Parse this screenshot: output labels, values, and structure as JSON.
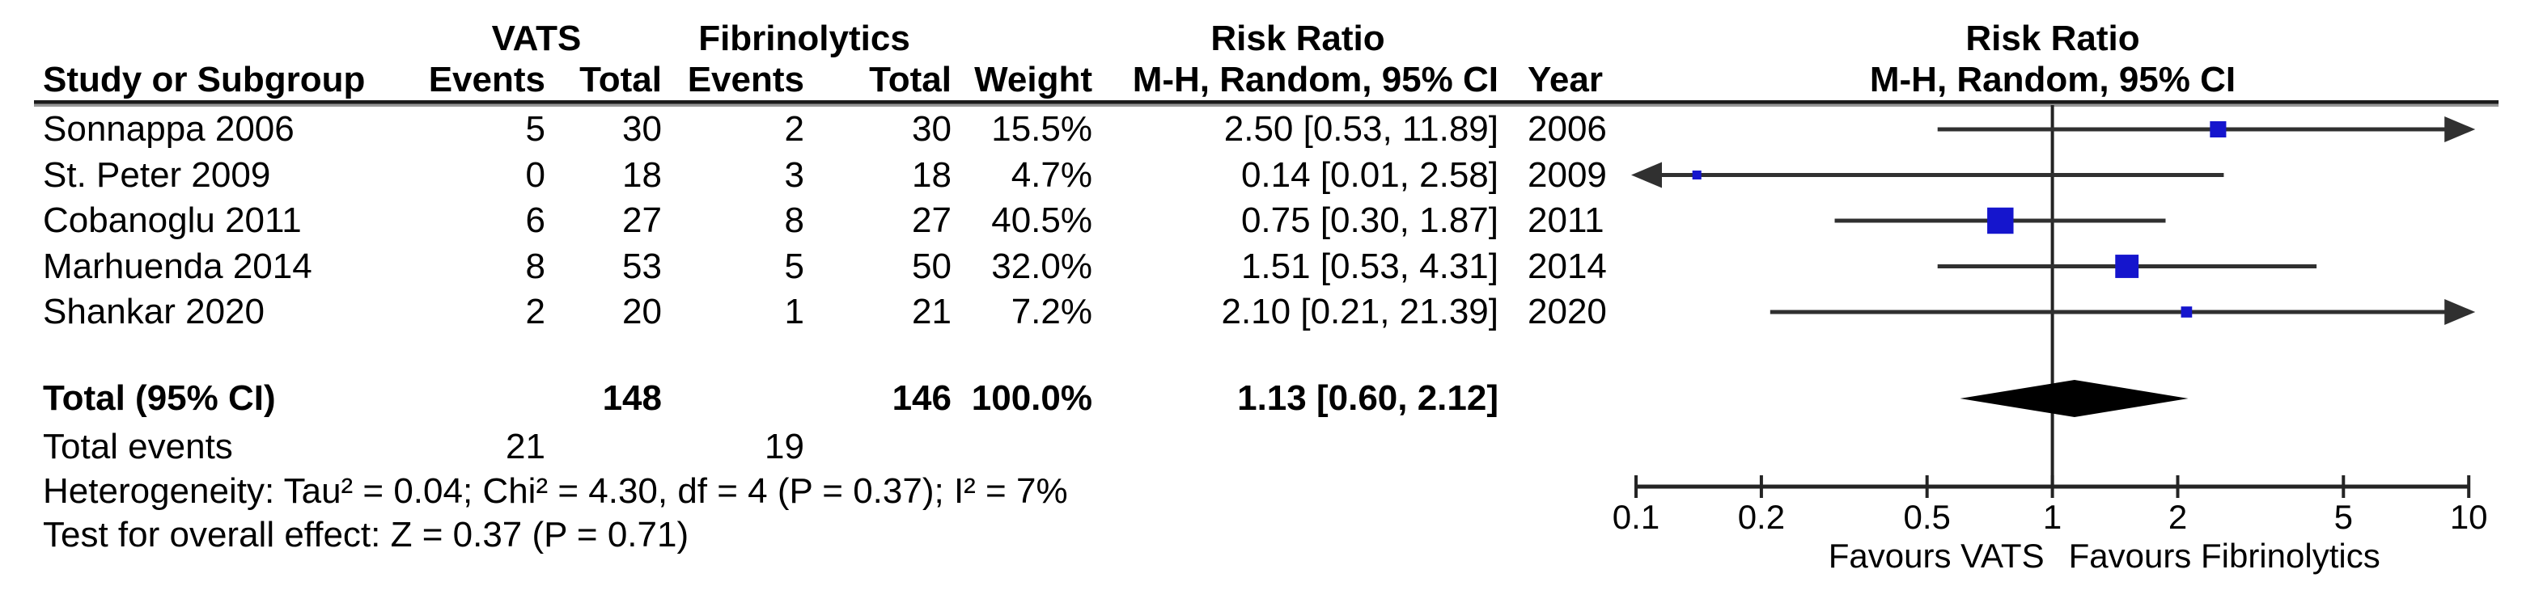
{
  "chart_data": {
    "type": "forest_plot",
    "effect_measure": "Risk Ratio",
    "groups": [
      {
        "label": "VATS"
      },
      {
        "label": "Fibrinolytics"
      }
    ],
    "risk_ratio_header_left": "Risk Ratio",
    "risk_ratio_header_right": "Risk Ratio",
    "method_header_left": "M-H, Random, 95% CI",
    "method_header_right": "M-H, Random, 95% CI",
    "columns": {
      "study": "Study or Subgroup",
      "events1": "Events",
      "total1": "Total",
      "events2": "Events",
      "total2": "Total",
      "weight": "Weight",
      "ci": "M-H, Random, 95% CI",
      "year": "Year"
    },
    "studies": [
      {
        "name": "Sonnappa 2006",
        "e1": "5",
        "t1": "30",
        "e2": "2",
        "t2": "30",
        "weight": "15.5%",
        "weight_pct": 15.5,
        "rr": 2.5,
        "lo": 0.53,
        "hi": 11.89,
        "ci": "2.50 [0.53, 11.89]",
        "year": "2006"
      },
      {
        "name": "St. Peter 2009",
        "e1": "0",
        "t1": "18",
        "e2": "3",
        "t2": "18",
        "weight": "4.7%",
        "weight_pct": 4.7,
        "rr": 0.14,
        "lo": 0.01,
        "hi": 2.58,
        "ci": "0.14 [0.01, 2.58]",
        "year": "2009"
      },
      {
        "name": "Cobanoglu 2011",
        "e1": "6",
        "t1": "27",
        "e2": "8",
        "t2": "27",
        "weight": "40.5%",
        "weight_pct": 40.5,
        "rr": 0.75,
        "lo": 0.3,
        "hi": 1.87,
        "ci": "0.75 [0.30, 1.87]",
        "year": "2011"
      },
      {
        "name": "Marhuenda 2014",
        "e1": "8",
        "t1": "53",
        "e2": "5",
        "t2": "50",
        "weight": "32.0%",
        "weight_pct": 32.0,
        "rr": 1.51,
        "lo": 0.53,
        "hi": 4.31,
        "ci": "1.51 [0.53, 4.31]",
        "year": "2014"
      },
      {
        "name": "Shankar 2020",
        "e1": "2",
        "t1": "20",
        "e2": "1",
        "t2": "21",
        "weight": "7.2%",
        "weight_pct": 7.2,
        "rr": 2.1,
        "lo": 0.21,
        "hi": 21.39,
        "ci": "2.10 [0.21, 21.39]",
        "year": "2020"
      }
    ],
    "total": {
      "label": "Total (95% CI)",
      "t1": "148",
      "t2": "146",
      "weight": "100.0%",
      "rr": 1.13,
      "lo": 0.6,
      "hi": 2.12,
      "ci": "1.13 [0.60, 2.12]"
    },
    "total_events": {
      "label": "Total events",
      "e1": "21",
      "e2": "19"
    },
    "heterogeneity": "Heterogeneity: Tau² = 0.04; Chi² = 4.30, df = 4 (P = 0.37); I² = 7%",
    "overall_effect": "Test for overall effect: Z = 0.37 (P = 0.71)",
    "x_axis": {
      "scale": "log",
      "min": 0.1,
      "max": 10,
      "tick_labels": [
        "0.1",
        "0.2",
        "0.5",
        "1",
        "2",
        "5",
        "10"
      ],
      "tick_values": [
        0.1,
        0.2,
        0.5,
        1,
        2,
        5,
        10
      ],
      "favours_left": "Favours VATS",
      "favours_right": "Favours Fibrinolytics"
    },
    "colors": {
      "square": "#1515cd",
      "line": "#303030",
      "diamond": "#000000",
      "axis": "#242424",
      "text": "#000000"
    }
  }
}
